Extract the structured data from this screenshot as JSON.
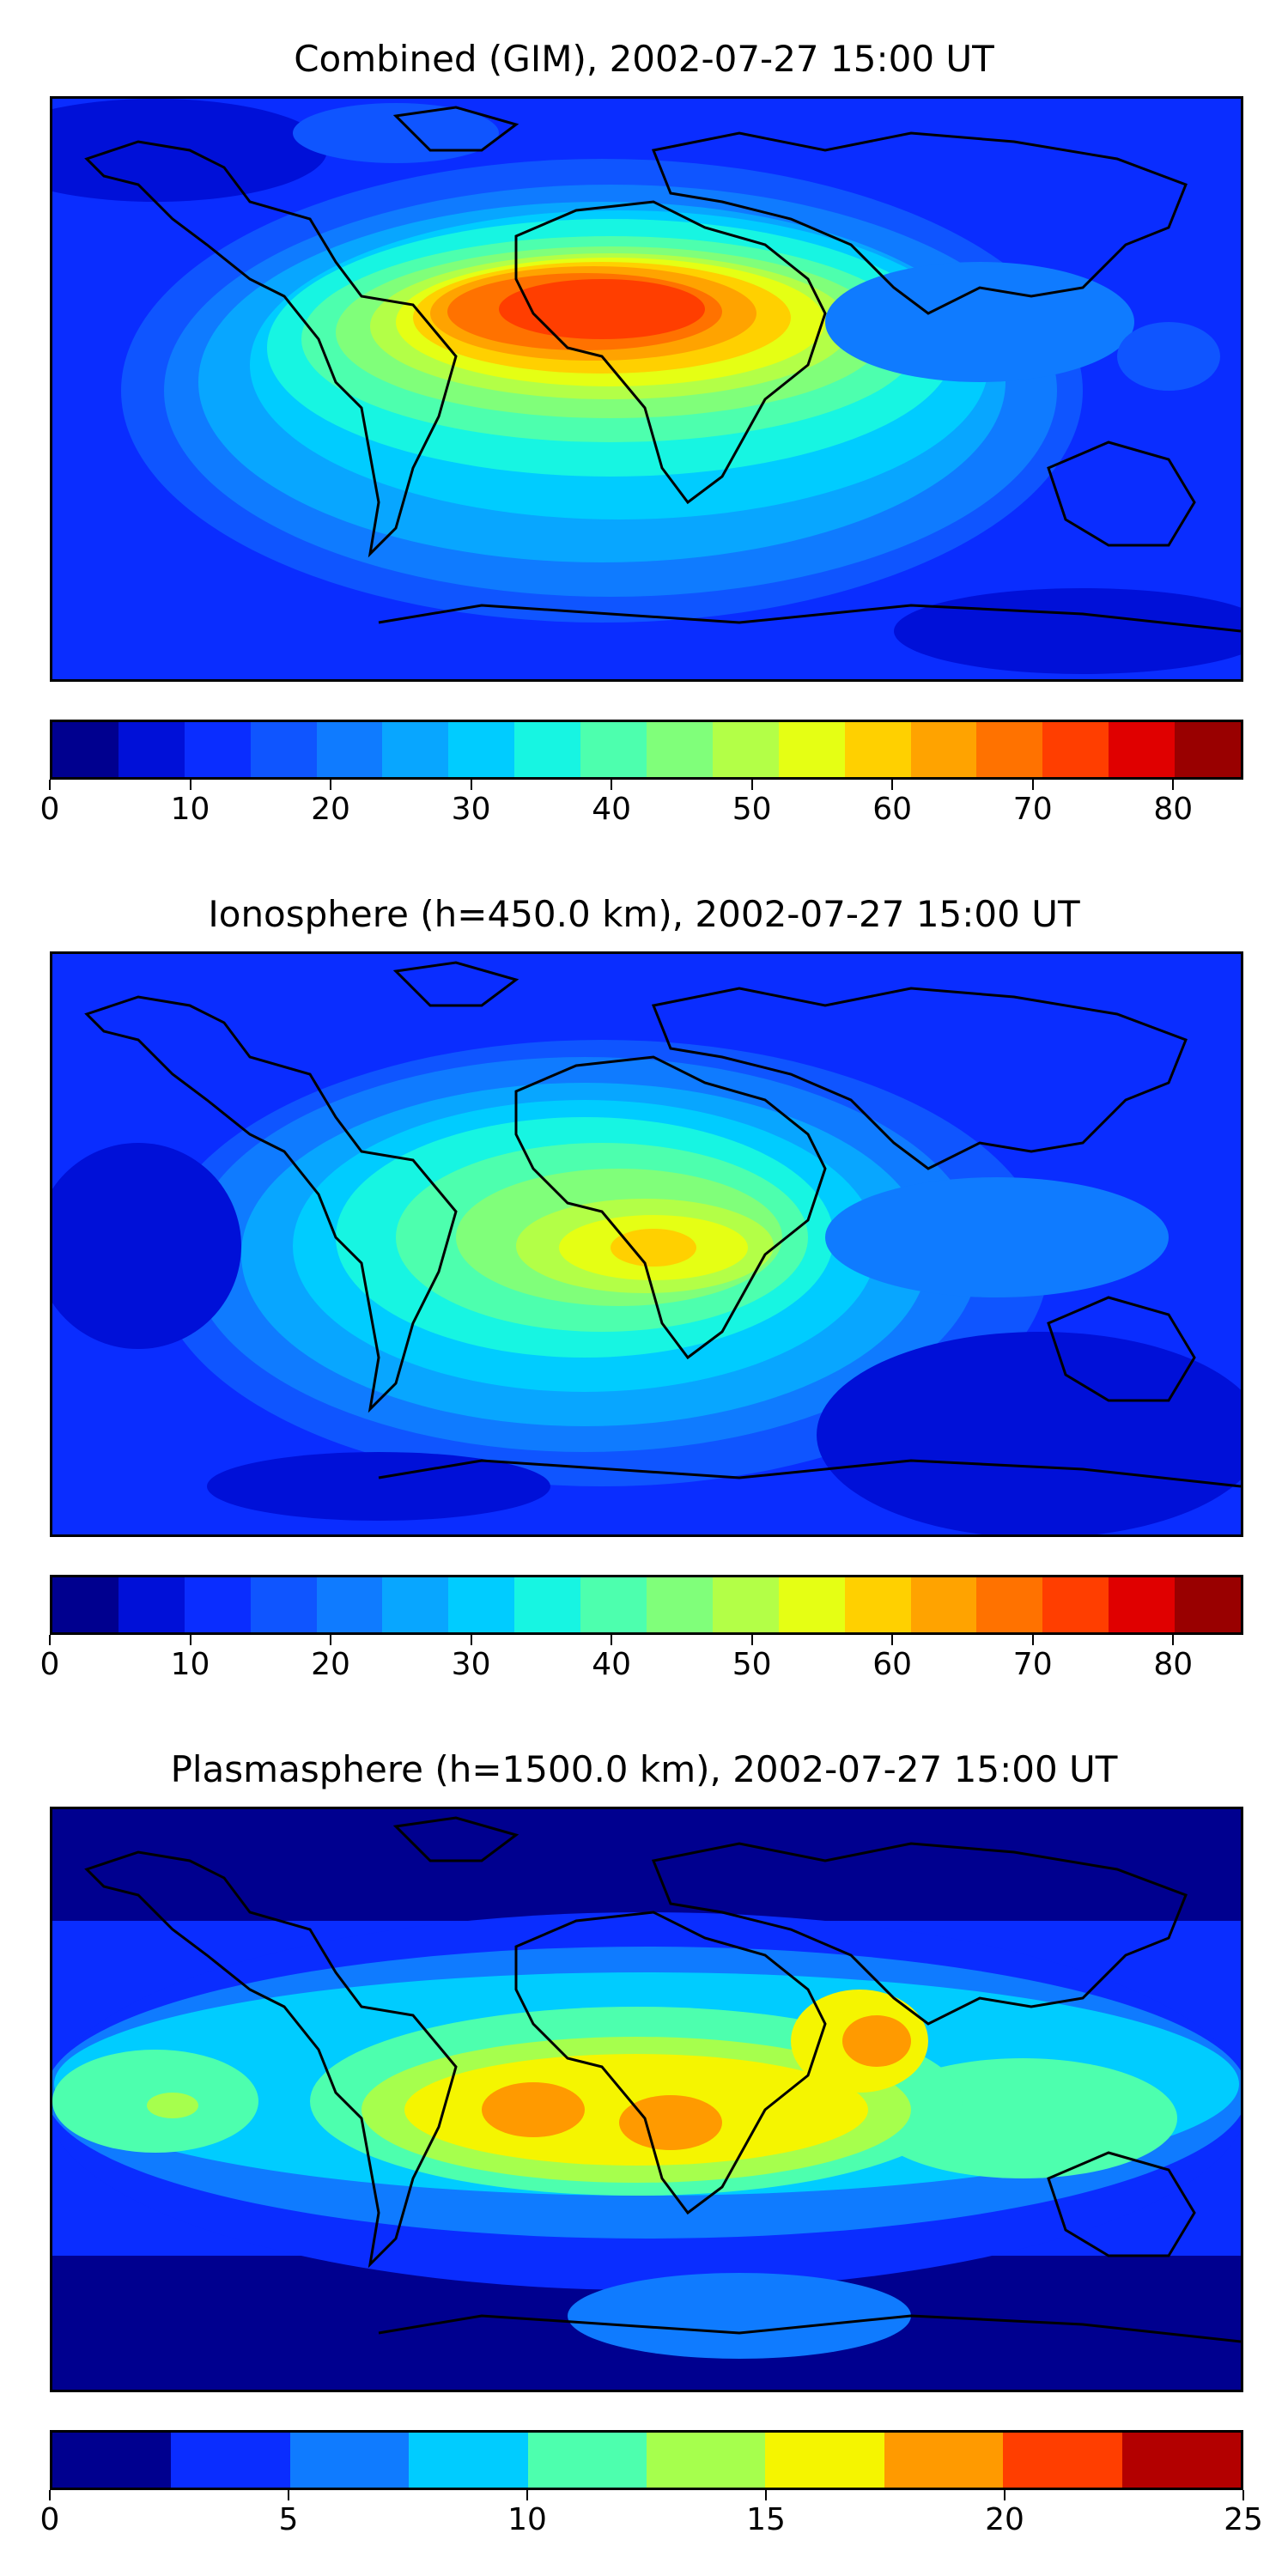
{
  "figure": {
    "panels": [
      {
        "id": "combined",
        "title": "Combined (GIM), 2002-07-27 15:00 UT",
        "colorbar": {
          "levels": [
            0,
            5,
            10,
            15,
            20,
            25,
            30,
            35,
            40,
            45,
            50,
            55,
            60,
            65,
            70,
            75,
            80,
            85
          ],
          "colors": [
            "#00008f",
            "#0010d8",
            "#0a2dff",
            "#0f55ff",
            "#0f7bff",
            "#08a6ff",
            "#00ccff",
            "#17f5e2",
            "#4dffae",
            "#80ff7a",
            "#b3ff47",
            "#e5ff14",
            "#ffd000",
            "#ffa300",
            "#ff7200",
            "#ff3e00",
            "#e00000",
            "#990000"
          ],
          "tick_labels": [
            "0",
            "10",
            "20",
            "30",
            "40",
            "50",
            "60",
            "70",
            "80"
          ],
          "tick_values": [
            0,
            10,
            20,
            30,
            40,
            50,
            60,
            70,
            80
          ]
        }
      },
      {
        "id": "ionosphere",
        "title": "Ionosphere  (h=450.0 km), 2002-07-27 15:00 UT",
        "colorbar": {
          "levels": [
            0,
            5,
            10,
            15,
            20,
            25,
            30,
            35,
            40,
            45,
            50,
            55,
            60,
            65,
            70,
            75,
            80,
            85
          ],
          "colors": [
            "#00008f",
            "#0010d8",
            "#0a2dff",
            "#0f55ff",
            "#0f7bff",
            "#08a6ff",
            "#00ccff",
            "#17f5e2",
            "#4dffae",
            "#80ff7a",
            "#b3ff47",
            "#e5ff14",
            "#ffd000",
            "#ffa300",
            "#ff7200",
            "#ff3e00",
            "#e00000",
            "#990000"
          ],
          "tick_labels": [
            "0",
            "10",
            "20",
            "30",
            "40",
            "50",
            "60",
            "70",
            "80"
          ],
          "tick_values": [
            0,
            10,
            20,
            30,
            40,
            50,
            60,
            70,
            80
          ]
        }
      },
      {
        "id": "plasmasphere",
        "title": "Plasmasphere (h=1500.0 km), 2002-07-27 15:00 UT",
        "colorbar": {
          "levels": [
            0,
            2.5,
            5,
            7.5,
            10,
            12.5,
            15,
            17.5,
            20,
            22.5,
            25
          ],
          "colors": [
            "#00008f",
            "#0a2dff",
            "#0f7bff",
            "#00ccff",
            "#4dffae",
            "#a6ff4d",
            "#f5f500",
            "#ff9a00",
            "#ff3e00",
            "#b30000"
          ],
          "tick_labels": [
            "0",
            "5",
            "10",
            "15",
            "20",
            "25"
          ],
          "tick_values": [
            0,
            5,
            10,
            15,
            20,
            25
          ]
        }
      }
    ]
  }
}
